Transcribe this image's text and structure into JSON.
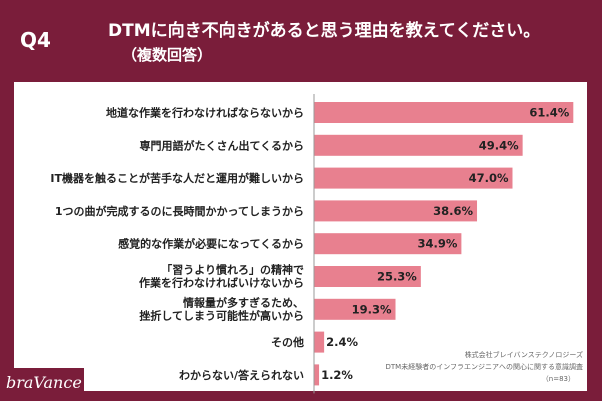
{
  "header": {
    "q_label": "Q4",
    "title_line1": "DTMに向き不向きがあると思う理由を教えてください。",
    "title_line2": "（複数回答）"
  },
  "brand": "braVance",
  "source": {
    "line1": "株式会社ブレイバンステクノロジーズ",
    "line2": "DTM未経験者のインフラエンジニアへの関心に関する意識調査",
    "line3": "（n=83）"
  },
  "colors": {
    "bar": "#e8808f",
    "background": "#7a1d3a",
    "panel": "#ffffff"
  },
  "chart_data": {
    "type": "bar",
    "orientation": "horizontal",
    "categories": [
      [
        "地道な作業を行わなければならないから"
      ],
      [
        "専門用語がたくさん出てくるから"
      ],
      [
        "IT機器を触ることが苦手な人だと運用が難しいから"
      ],
      [
        "1つの曲が完成するのに長時間かかってしまうから"
      ],
      [
        "感覚的な作業が必要になってくるから"
      ],
      [
        "「習うより慣れろ」の精神で",
        "作業を行わなければいけないから"
      ],
      [
        "情報量が多すぎるため、",
        "挫折してしまう可能性が高いから"
      ],
      [
        "その他"
      ],
      [
        "わからない/答えられない"
      ]
    ],
    "values": [
      61.4,
      49.4,
      47.0,
      38.6,
      34.9,
      25.3,
      19.3,
      2.4,
      1.2
    ],
    "value_labels": [
      "61.4%",
      "49.4%",
      "47.0%",
      "38.6%",
      "34.9%",
      "25.3%",
      "19.3%",
      "2.4%",
      "1.2%"
    ],
    "xlim": [
      0,
      65
    ],
    "grid": false
  }
}
